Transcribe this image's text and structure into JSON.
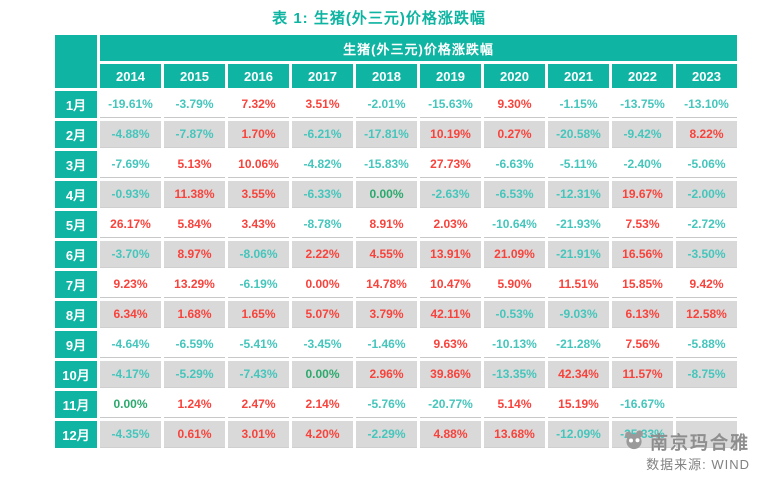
{
  "title": "表 1: 生猪(外三元)价格涨跌幅",
  "table": {
    "group_header": "生猪(外三元)价格涨跌幅",
    "years": [
      "2014",
      "2015",
      "2016",
      "2017",
      "2018",
      "2019",
      "2020",
      "2021",
      "2022",
      "2023"
    ],
    "rows": [
      {
        "month": "1月",
        "cells": [
          {
            "v": "-19.61%",
            "c": "neg"
          },
          {
            "v": "-3.79%",
            "c": "neg"
          },
          {
            "v": "7.32%",
            "c": "pos"
          },
          {
            "v": "3.51%",
            "c": "pos"
          },
          {
            "v": "-2.01%",
            "c": "neg"
          },
          {
            "v": "-15.63%",
            "c": "neg"
          },
          {
            "v": "9.30%",
            "c": "pos"
          },
          {
            "v": "-1.15%",
            "c": "neg"
          },
          {
            "v": "-13.75%",
            "c": "neg"
          },
          {
            "v": "-13.10%",
            "c": "neg"
          }
        ]
      },
      {
        "month": "2月",
        "cells": [
          {
            "v": "-4.88%",
            "c": "neg"
          },
          {
            "v": "-7.87%",
            "c": "neg"
          },
          {
            "v": "1.70%",
            "c": "pos"
          },
          {
            "v": "-6.21%",
            "c": "neg"
          },
          {
            "v": "-17.81%",
            "c": "neg"
          },
          {
            "v": "10.19%",
            "c": "pos"
          },
          {
            "v": "0.27%",
            "c": "pos"
          },
          {
            "v": "-20.58%",
            "c": "neg"
          },
          {
            "v": "-9.42%",
            "c": "neg"
          },
          {
            "v": "8.22%",
            "c": "pos"
          }
        ]
      },
      {
        "month": "3月",
        "cells": [
          {
            "v": "-7.69%",
            "c": "neg"
          },
          {
            "v": "5.13%",
            "c": "pos"
          },
          {
            "v": "10.06%",
            "c": "pos"
          },
          {
            "v": "-4.82%",
            "c": "neg"
          },
          {
            "v": "-15.83%",
            "c": "neg"
          },
          {
            "v": "27.73%",
            "c": "pos"
          },
          {
            "v": "-6.63%",
            "c": "neg"
          },
          {
            "v": "-5.11%",
            "c": "neg"
          },
          {
            "v": "-2.40%",
            "c": "neg"
          },
          {
            "v": "-5.06%",
            "c": "neg"
          }
        ]
      },
      {
        "month": "4月",
        "cells": [
          {
            "v": "-0.93%",
            "c": "neg"
          },
          {
            "v": "11.38%",
            "c": "pos"
          },
          {
            "v": "3.55%",
            "c": "pos"
          },
          {
            "v": "-6.33%",
            "c": "neg"
          },
          {
            "v": "0.00%",
            "c": "zero"
          },
          {
            "v": "-2.63%",
            "c": "neg"
          },
          {
            "v": "-6.53%",
            "c": "neg"
          },
          {
            "v": "-12.31%",
            "c": "neg"
          },
          {
            "v": "19.67%",
            "c": "pos"
          },
          {
            "v": "-2.00%",
            "c": "neg"
          }
        ]
      },
      {
        "month": "5月",
        "cells": [
          {
            "v": "26.17%",
            "c": "pos"
          },
          {
            "v": "5.84%",
            "c": "pos"
          },
          {
            "v": "3.43%",
            "c": "pos"
          },
          {
            "v": "-8.78%",
            "c": "neg"
          },
          {
            "v": "8.91%",
            "c": "pos"
          },
          {
            "v": "2.03%",
            "c": "pos"
          },
          {
            "v": "-10.64%",
            "c": "neg"
          },
          {
            "v": "-21.93%",
            "c": "neg"
          },
          {
            "v": "7.53%",
            "c": "pos"
          },
          {
            "v": "-2.72%",
            "c": "neg"
          }
        ]
      },
      {
        "month": "6月",
        "cells": [
          {
            "v": "-3.70%",
            "c": "neg"
          },
          {
            "v": "8.97%",
            "c": "pos"
          },
          {
            "v": "-8.06%",
            "c": "neg"
          },
          {
            "v": "2.22%",
            "c": "pos"
          },
          {
            "v": "4.55%",
            "c": "pos"
          },
          {
            "v": "13.91%",
            "c": "pos"
          },
          {
            "v": "21.09%",
            "c": "pos"
          },
          {
            "v": "-21.91%",
            "c": "neg"
          },
          {
            "v": "16.56%",
            "c": "pos"
          },
          {
            "v": "-3.50%",
            "c": "neg"
          }
        ]
      },
      {
        "month": "7月",
        "cells": [
          {
            "v": "9.23%",
            "c": "pos"
          },
          {
            "v": "13.29%",
            "c": "pos"
          },
          {
            "v": "-6.19%",
            "c": "neg"
          },
          {
            "v": "0.00%",
            "c": "pos"
          },
          {
            "v": "14.78%",
            "c": "pos"
          },
          {
            "v": "10.47%",
            "c": "pos"
          },
          {
            "v": "5.90%",
            "c": "pos"
          },
          {
            "v": "11.51%",
            "c": "pos"
          },
          {
            "v": "15.85%",
            "c": "pos"
          },
          {
            "v": "9.42%",
            "c": "pos"
          }
        ]
      },
      {
        "month": "8月",
        "cells": [
          {
            "v": "6.34%",
            "c": "pos"
          },
          {
            "v": "1.68%",
            "c": "pos"
          },
          {
            "v": "1.65%",
            "c": "pos"
          },
          {
            "v": "5.07%",
            "c": "pos"
          },
          {
            "v": "3.79%",
            "c": "pos"
          },
          {
            "v": "42.11%",
            "c": "pos"
          },
          {
            "v": "-0.53%",
            "c": "neg"
          },
          {
            "v": "-9.03%",
            "c": "neg"
          },
          {
            "v": "6.13%",
            "c": "pos"
          },
          {
            "v": "12.58%",
            "c": "pos"
          }
        ]
      },
      {
        "month": "9月",
        "cells": [
          {
            "v": "-4.64%",
            "c": "neg"
          },
          {
            "v": "-6.59%",
            "c": "neg"
          },
          {
            "v": "-5.41%",
            "c": "neg"
          },
          {
            "v": "-3.45%",
            "c": "neg"
          },
          {
            "v": "-1.46%",
            "c": "neg"
          },
          {
            "v": "9.63%",
            "c": "pos"
          },
          {
            "v": "-10.13%",
            "c": "neg"
          },
          {
            "v": "-21.28%",
            "c": "neg"
          },
          {
            "v": "7.56%",
            "c": "pos"
          },
          {
            "v": "-5.88%",
            "c": "neg"
          }
        ]
      },
      {
        "month": "10月",
        "cells": [
          {
            "v": "-4.17%",
            "c": "neg"
          },
          {
            "v": "-5.29%",
            "c": "neg"
          },
          {
            "v": "-7.43%",
            "c": "neg"
          },
          {
            "v": "0.00%",
            "c": "zero"
          },
          {
            "v": "2.96%",
            "c": "pos"
          },
          {
            "v": "39.86%",
            "c": "pos"
          },
          {
            "v": "-13.35%",
            "c": "neg"
          },
          {
            "v": "42.34%",
            "c": "pos"
          },
          {
            "v": "11.57%",
            "c": "pos"
          },
          {
            "v": "-8.75%",
            "c": "neg"
          }
        ]
      },
      {
        "month": "11月",
        "cells": [
          {
            "v": "0.00%",
            "c": "zero"
          },
          {
            "v": "1.24%",
            "c": "pos"
          },
          {
            "v": "2.47%",
            "c": "pos"
          },
          {
            "v": "2.14%",
            "c": "pos"
          },
          {
            "v": "-5.76%",
            "c": "neg"
          },
          {
            "v": "-20.77%",
            "c": "neg"
          },
          {
            "v": "5.14%",
            "c": "pos"
          },
          {
            "v": "15.19%",
            "c": "pos"
          },
          {
            "v": "-16.67%",
            "c": "neg"
          },
          {
            "v": "",
            "c": ""
          }
        ]
      },
      {
        "month": "12月",
        "cells": [
          {
            "v": "-4.35%",
            "c": "neg"
          },
          {
            "v": "0.61%",
            "c": "pos"
          },
          {
            "v": "3.01%",
            "c": "pos"
          },
          {
            "v": "4.20%",
            "c": "pos"
          },
          {
            "v": "-2.29%",
            "c": "neg"
          },
          {
            "v": "4.88%",
            "c": "pos"
          },
          {
            "v": "13.68%",
            "c": "pos"
          },
          {
            "v": "-12.09%",
            "c": "neg"
          },
          {
            "v": "-25.33%",
            "c": "neg"
          },
          {
            "v": "",
            "c": ""
          }
        ]
      }
    ]
  },
  "watermark": {
    "brand": "南京玛合雅",
    "source": "数据来源: WIND"
  },
  "colors": {
    "accent_teal": "#10B4A3",
    "positive_red": "#F8433C",
    "negative_teal": "#45C6BC",
    "zero_green": "#2BAA6E",
    "row_alt_gray": "#D9D9D9",
    "title_teal": "#0EB4A2"
  }
}
